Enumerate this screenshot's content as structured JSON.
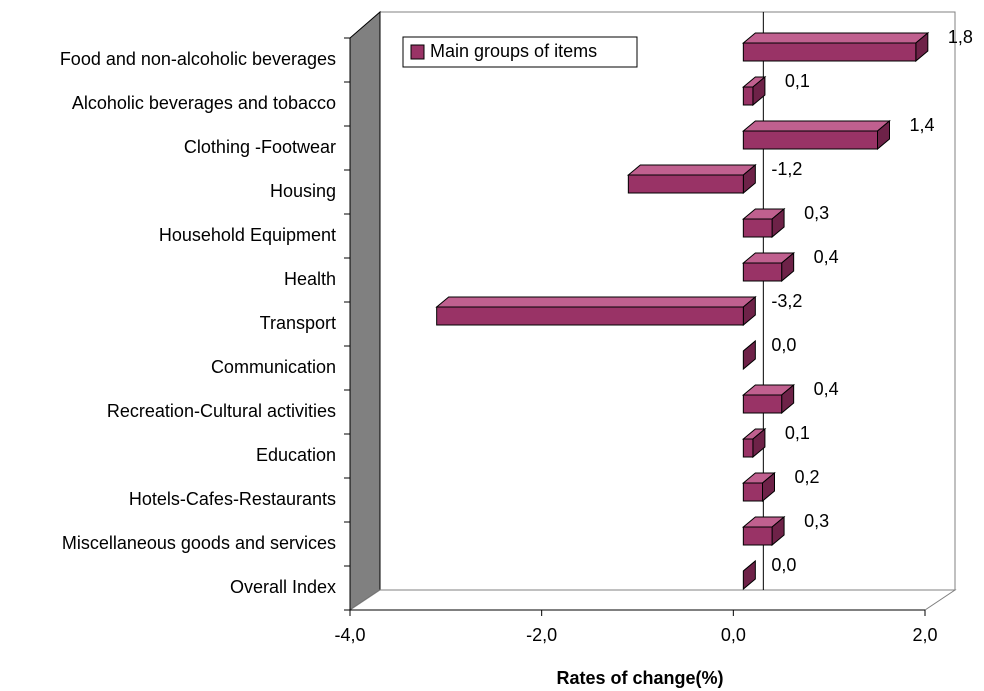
{
  "chart_data": {
    "type": "bar3d_horizontal",
    "x_label": "Rates of change(%)",
    "categories": [
      "Food and non-alcoholic beverages",
      "Alcoholic beverages and tobacco",
      "Clothing -Footwear",
      "Housing",
      "Household Equipment",
      "Health",
      "Transport",
      "Communication",
      "Recreation-Cultural activities",
      "Education",
      "Hotels-Cafes-Restaurants",
      "Miscellaneous goods and services",
      "Overall Index"
    ],
    "series": [
      {
        "name": "Main groups of items",
        "color": "#993366",
        "values": [
          1.8,
          0.1,
          1.4,
          -1.2,
          0.3,
          0.4,
          -3.2,
          0.0,
          0.4,
          0.1,
          0.2,
          0.3,
          0.0
        ],
        "value_labels": [
          "1,8",
          "0,1",
          "1,4",
          "-1,2",
          "0,3",
          "0,4",
          "-3,2",
          "0,0",
          "0,4",
          "0,1",
          "0,2",
          "0,3",
          "0,0"
        ]
      }
    ],
    "xlim": [
      -4,
      2
    ],
    "xticks": [
      {
        "value": -4,
        "label": "-4,0"
      },
      {
        "value": -2,
        "label": "-2,0"
      },
      {
        "value": 0,
        "label": "0,0"
      },
      {
        "value": 2,
        "label": "2,0"
      }
    ],
    "legend": "top-left"
  }
}
